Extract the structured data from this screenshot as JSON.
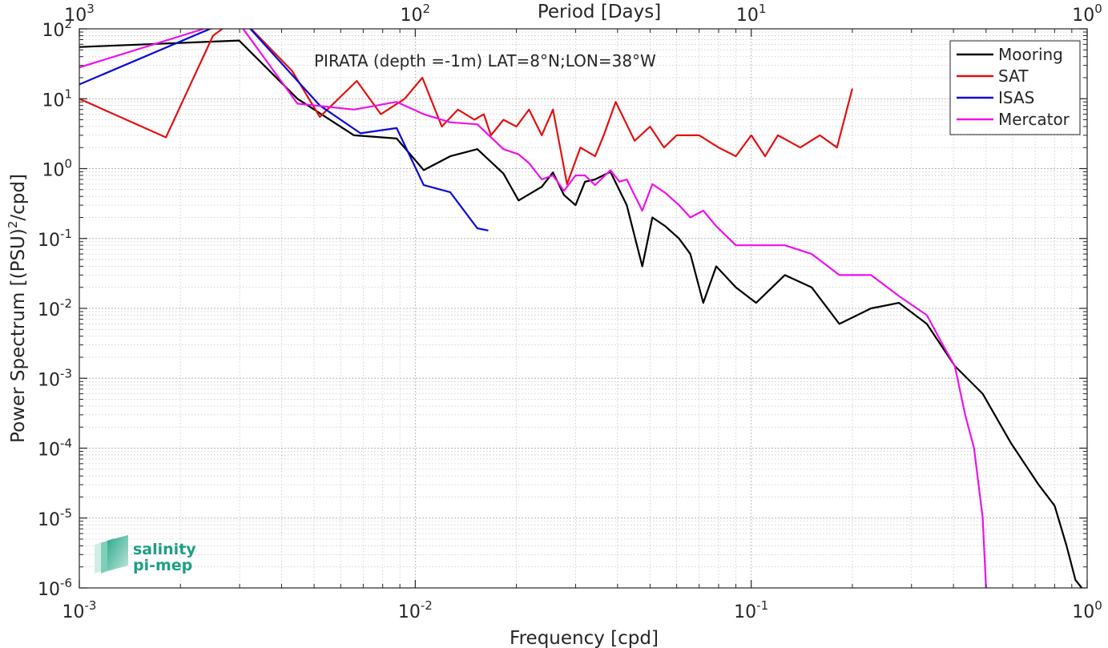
{
  "chart_data": {
    "type": "line",
    "title": "",
    "annotation": "PIRATA (depth =-1m) LAT=8°N;LON=38°W",
    "xlabel": "Frequency [cpd]",
    "ylabel": "Power Spectrum [(PSU)²/cpd]",
    "x2label": "Period [Days]",
    "xscale": "log",
    "yscale": "log",
    "xlim": [
      0.001,
      1
    ],
    "ylim": [
      1e-06,
      100
    ],
    "grid": true,
    "legend_position": "top-right",
    "x_ticks": [
      {
        "base": "10",
        "exp": "-3"
      },
      {
        "base": "10",
        "exp": "-2"
      },
      {
        "base": "10",
        "exp": "-1"
      },
      {
        "base": "10",
        "exp": "0"
      }
    ],
    "x2_ticks": [
      {
        "base": "10",
        "exp": "3"
      },
      {
        "base": "10",
        "exp": "2"
      },
      {
        "base": "10",
        "exp": "1"
      },
      {
        "base": "10",
        "exp": "0"
      }
    ],
    "y_ticks": [
      {
        "base": "10",
        "exp": "2"
      },
      {
        "base": "10",
        "exp": "1"
      },
      {
        "base": "10",
        "exp": "0"
      },
      {
        "base": "10",
        "exp": "-1"
      },
      {
        "base": "10",
        "exp": "-2"
      },
      {
        "base": "10",
        "exp": "-3"
      },
      {
        "base": "10",
        "exp": "-4"
      },
      {
        "base": "10",
        "exp": "-5"
      },
      {
        "base": "10",
        "exp": "-6"
      }
    ],
    "series": [
      {
        "name": "Mooring",
        "color": "#000000",
        "points": [
          [
            0.001,
            55
          ],
          [
            0.00299,
            68
          ],
          [
            0.00446,
            10
          ],
          [
            0.00657,
            3
          ],
          [
            0.0088,
            2.7
          ],
          [
            0.0106,
            0.95
          ],
          [
            0.0127,
            1.5
          ],
          [
            0.0153,
            1.9
          ],
          [
            0.0183,
            0.85
          ],
          [
            0.0203,
            0.35
          ],
          [
            0.0238,
            0.55
          ],
          [
            0.0257,
            0.88
          ],
          [
            0.0277,
            0.42
          ],
          [
            0.03,
            0.3
          ],
          [
            0.032,
            0.65
          ],
          [
            0.0343,
            0.7
          ],
          [
            0.0381,
            0.9
          ],
          [
            0.0426,
            0.3
          ],
          [
            0.0474,
            0.04
          ],
          [
            0.0508,
            0.2
          ],
          [
            0.0555,
            0.15
          ],
          [
            0.061,
            0.1
          ],
          [
            0.0659,
            0.06
          ],
          [
            0.072,
            0.012
          ],
          [
            0.0787,
            0.04
          ],
          [
            0.09,
            0.02
          ],
          [
            0.1034,
            0.012
          ],
          [
            0.1259,
            0.03
          ],
          [
            0.1513,
            0.02
          ],
          [
            0.183,
            0.006
          ],
          [
            0.2273,
            0.01
          ],
          [
            0.2753,
            0.012
          ],
          [
            0.3333,
            0.006
          ],
          [
            0.4037,
            0.0015
          ],
          [
            0.4887,
            0.0006
          ],
          [
            0.5919,
            0.00012
          ],
          [
            0.717,
            3e-05
          ],
          [
            0.8,
            1.5e-05
          ],
          [
            0.8684,
            4e-06
          ],
          [
            0.9232,
            1.3e-06
          ],
          [
            1.0,
            8e-07
          ]
        ]
      },
      {
        "name": "SAT",
        "color": "#e41010",
        "points": [
          [
            0.001,
            10
          ],
          [
            0.00181,
            2.8
          ],
          [
            0.0025,
            80
          ],
          [
            0.00299,
            150
          ],
          [
            0.0043,
            25
          ],
          [
            0.0052,
            5.5
          ],
          [
            0.0067,
            18
          ],
          [
            0.0079,
            6
          ],
          [
            0.0093,
            10
          ],
          [
            0.0105,
            20
          ],
          [
            0.012,
            4
          ],
          [
            0.0134,
            7
          ],
          [
            0.015,
            5
          ],
          [
            0.016,
            6
          ],
          [
            0.0168,
            3
          ],
          [
            0.0183,
            5
          ],
          [
            0.02,
            4
          ],
          [
            0.0218,
            7
          ],
          [
            0.0238,
            3
          ],
          [
            0.0257,
            7
          ],
          [
            0.0283,
            0.6
          ],
          [
            0.031,
            2
          ],
          [
            0.0343,
            1.5
          ],
          [
            0.0364,
            3
          ],
          [
            0.0395,
            9
          ],
          [
            0.045,
            2.5
          ],
          [
            0.05,
            4
          ],
          [
            0.055,
            2
          ],
          [
            0.06,
            3
          ],
          [
            0.07,
            3
          ],
          [
            0.08,
            2
          ],
          [
            0.09,
            1.5
          ],
          [
            0.1,
            3
          ],
          [
            0.11,
            1.5
          ],
          [
            0.12,
            3
          ],
          [
            0.14,
            2
          ],
          [
            0.16,
            3
          ],
          [
            0.18,
            2
          ],
          [
            0.2,
            14
          ]
        ]
      },
      {
        "name": "ISAS",
        "color": "#0a0ad8",
        "points": [
          [
            0.001,
            16
          ],
          [
            0.00299,
            150
          ],
          [
            0.0052,
            8
          ],
          [
            0.00687,
            3.2
          ],
          [
            0.0088,
            3.8
          ],
          [
            0.0106,
            0.58
          ],
          [
            0.0127,
            0.46
          ],
          [
            0.0153,
            0.14
          ],
          [
            0.0165,
            0.13
          ]
        ]
      },
      {
        "name": "Mercator",
        "color": "#ee10ee",
        "points": [
          [
            0.001,
            28
          ],
          [
            0.0025,
            110
          ],
          [
            0.00299,
            120
          ],
          [
            0.00446,
            8.5
          ],
          [
            0.00657,
            7
          ],
          [
            0.0088,
            9
          ],
          [
            0.0106,
            6
          ],
          [
            0.0127,
            4.6
          ],
          [
            0.0153,
            4.3
          ],
          [
            0.0183,
            1.9
          ],
          [
            0.0203,
            1.6
          ],
          [
            0.0218,
            1.2
          ],
          [
            0.0238,
            0.7
          ],
          [
            0.0257,
            0.8
          ],
          [
            0.0277,
            0.48
          ],
          [
            0.03,
            0.8
          ],
          [
            0.032,
            0.8
          ],
          [
            0.0343,
            0.58
          ],
          [
            0.0381,
            0.95
          ],
          [
            0.0405,
            0.65
          ],
          [
            0.0426,
            0.7
          ],
          [
            0.0474,
            0.25
          ],
          [
            0.0508,
            0.6
          ],
          [
            0.0555,
            0.45
          ],
          [
            0.061,
            0.3
          ],
          [
            0.0659,
            0.2
          ],
          [
            0.072,
            0.25
          ],
          [
            0.0787,
            0.15
          ],
          [
            0.09,
            0.08
          ],
          [
            0.1034,
            0.08
          ],
          [
            0.1259,
            0.08
          ],
          [
            0.1513,
            0.06
          ],
          [
            0.183,
            0.03
          ],
          [
            0.2273,
            0.03
          ],
          [
            0.2753,
            0.015
          ],
          [
            0.3333,
            0.008
          ],
          [
            0.372,
            0.003
          ],
          [
            0.4037,
            0.0015
          ],
          [
            0.4334,
            0.0003
          ],
          [
            0.4605,
            0.0001
          ],
          [
            0.4887,
            1e-05
          ],
          [
            0.5,
            1e-06
          ]
        ]
      }
    ]
  },
  "logo": {
    "line1": "salinity",
    "line2": "pi-mep",
    "color": "#1e9e86"
  }
}
